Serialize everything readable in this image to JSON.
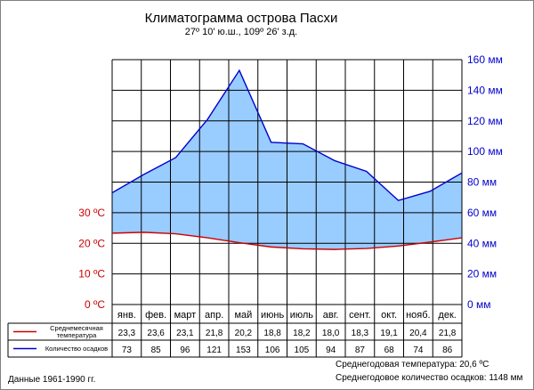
{
  "title": "Климатограмма острова Пасхи",
  "subtitle": "27º 10' ю.ш., 109º 26' з.д.",
  "footnote": "Данные 1961-1990 гг.",
  "stats": {
    "avg_temperature": "Среднегодовая температура: 20,6 ºC",
    "total_precipitation": "Среднегодовое количество осадков: 1148 мм"
  },
  "legend": {
    "temperature": "Среднемесячная температура",
    "precipitation": "Количество осадков"
  },
  "colors": {
    "temperature_line": "#cc0000",
    "precipitation_line": "#0000cc",
    "precipitation_fill": "#99ccff",
    "temperature_axis_text": "#cc0000",
    "precipitation_axis_text": "#0000cc"
  },
  "chart_data": {
    "type": "line",
    "title": "Климатограмма острова Пасхи",
    "categories": [
      "янв.",
      "фев.",
      "март",
      "апр.",
      "май",
      "июнь",
      "июль",
      "авг.",
      "сент.",
      "окт.",
      "нояб.",
      "дек."
    ],
    "series": [
      {
        "name": "Среднемесячная температура",
        "axis": "left",
        "unit": "ºC",
        "values": [
          23.3,
          23.6,
          23.1,
          21.8,
          20.2,
          18.8,
          18.2,
          18.0,
          18.3,
          19.1,
          20.4,
          21.8
        ],
        "labels": [
          "23,3",
          "23,6",
          "23,1",
          "21,8",
          "20,2",
          "18,8",
          "18,2",
          "18,0",
          "18,3",
          "19,1",
          "20,4",
          "21,8"
        ]
      },
      {
        "name": "Количество осадков",
        "axis": "right",
        "unit": "мм",
        "values": [
          73,
          85,
          96,
          121,
          153,
          106,
          105,
          94,
          87,
          68,
          74,
          86
        ],
        "labels": [
          "73",
          "85",
          "96",
          "121",
          "153",
          "106",
          "105",
          "94",
          "87",
          "68",
          "74",
          "86"
        ]
      }
    ],
    "left_axis": {
      "ylim": [
        0,
        80
      ],
      "ticks": [
        0,
        10,
        20,
        30
      ],
      "tick_labels": [
        "0 ºC",
        "10 ºC",
        "20 ºC",
        "30 ºC"
      ]
    },
    "right_axis": {
      "ylim": [
        0,
        160
      ],
      "ticks": [
        0,
        20,
        40,
        60,
        80,
        100,
        120,
        140,
        160
      ],
      "tick_labels": [
        "0 мм",
        "20 мм",
        "40 мм",
        "60 мм",
        "80 мм",
        "100 мм",
        "120 мм",
        "140 мм",
        "160 мм"
      ]
    },
    "grid": true,
    "fill_between": true
  }
}
